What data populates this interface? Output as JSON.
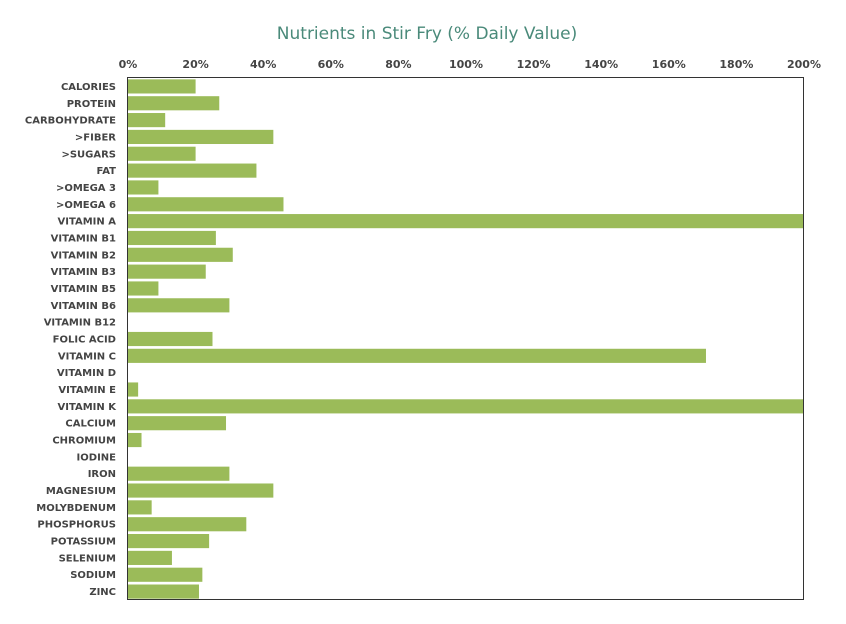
{
  "chart_data": {
    "type": "bar",
    "orientation": "horizontal",
    "title": "Nutrients in Stir Fry (% Daily Value)",
    "xlabel": "",
    "ylabel": "",
    "xlim": [
      0,
      200
    ],
    "x_ticks": [
      "0%",
      "20%",
      "40%",
      "60%",
      "80%",
      "100%",
      "120%",
      "140%",
      "160%",
      "180%",
      "200%"
    ],
    "x_tick_values": [
      0,
      20,
      40,
      60,
      80,
      100,
      120,
      140,
      160,
      180,
      200
    ],
    "x_axis_position": "top",
    "grid": false,
    "legend": "none",
    "bar_color": "#9bbb59",
    "categories": [
      "CALORIES",
      "PROTEIN",
      "CARBOHYDRATE",
      ">FIBER",
      ">SUGARS",
      "FAT",
      ">OMEGA 3",
      ">OMEGA 6",
      "VITAMIN A",
      "VITAMIN B1",
      "VITAMIN B2",
      "VITAMIN B3",
      "VITAMIN B5",
      "VITAMIN B6",
      "VITAMIN B12",
      "FOLIC ACID",
      "VITAMIN C",
      "VITAMIN D",
      "VITAMIN E",
      "VITAMIN K",
      "CALCIUM",
      "CHROMIUM",
      "IODINE",
      "IRON",
      "MAGNESIUM",
      "MOLYBDENUM",
      "PHOSPHORUS",
      "POTASSIUM",
      "SELENIUM",
      "SODIUM",
      "ZINC"
    ],
    "values": [
      20,
      27,
      11,
      43,
      20,
      38,
      9,
      46,
      200,
      26,
      31,
      23,
      9,
      30,
      0,
      25,
      171,
      0,
      3,
      200,
      29,
      4,
      0,
      30,
      43,
      7,
      35,
      24,
      13,
      22,
      21
    ]
  }
}
